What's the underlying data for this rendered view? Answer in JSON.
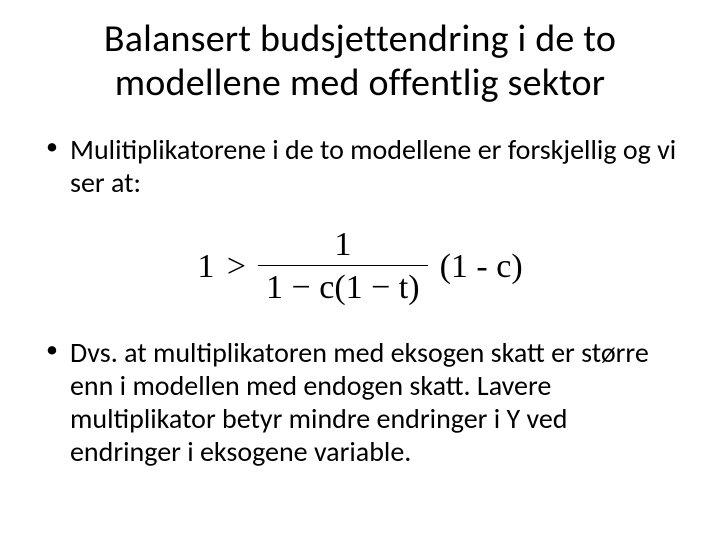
{
  "title": "Balansert budsjettendring i de to modellene med offentlig sektor",
  "bullets": {
    "b1": "Mulitiplikatorene i de to modellene er forskjellig og vi ser at:",
    "b2": "Dvs. at multiplikatoren med eksogen skatt er større enn i modellen med endogen skatt. Lavere multiplikator betyr mindre endringer i Y ved endringer i eksogene variable."
  },
  "formula": {
    "lead": "1 >",
    "numerator": "1",
    "denominator": "1 − c(1 − t)",
    "tail": "(1 - c)",
    "font_family": "Times New Roman",
    "font_size_pt": 26,
    "rule_color": "#000000"
  },
  "styling": {
    "background_color": "#ffffff",
    "text_color": "#000000",
    "title_fontsize_pt": 29,
    "body_fontsize_pt": 21,
    "font_family": "Calibri"
  }
}
